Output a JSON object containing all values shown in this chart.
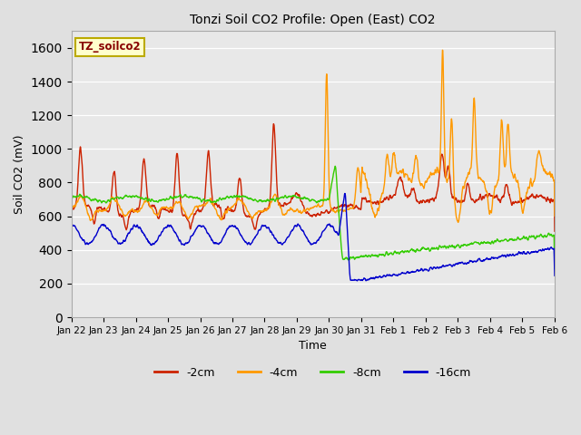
{
  "title": "Tonzi Soil CO2 Profile: Open (East) CO2",
  "xlabel": "Time",
  "ylabel": "Soil CO2 (mV)",
  "ylim": [
    0,
    1700
  ],
  "yticks": [
    0,
    200,
    400,
    600,
    800,
    1000,
    1200,
    1400,
    1600
  ],
  "bg_color": "#e0e0e0",
  "plot_bg_color": "#e8e8e8",
  "legend_box_color": "#ffffcc",
  "legend_box_edge": "#bbaa00",
  "legend_label_color": "#880000",
  "series": [
    {
      "label": "-2cm",
      "color": "#cc2200",
      "lw": 1.0
    },
    {
      "label": "-4cm",
      "color": "#ff9900",
      "lw": 1.0
    },
    {
      "label": "-8cm",
      "color": "#33cc00",
      "lw": 1.0
    },
    {
      "label": "-16cm",
      "color": "#0000cc",
      "lw": 1.0
    }
  ],
  "x_tick_labels": [
    "Jan 22",
    "Jan 23",
    "Jan 24",
    "Jan 25",
    "Jan 26",
    "Jan 27",
    "Jan 28",
    "Jan 29",
    "Jan 30",
    "Jan 31",
    "Feb 1",
    "Feb 2",
    "Feb 3",
    "Feb 4",
    "Feb 5",
    "Feb 6"
  ],
  "figsize": [
    6.4,
    4.8
  ],
  "dpi": 100
}
